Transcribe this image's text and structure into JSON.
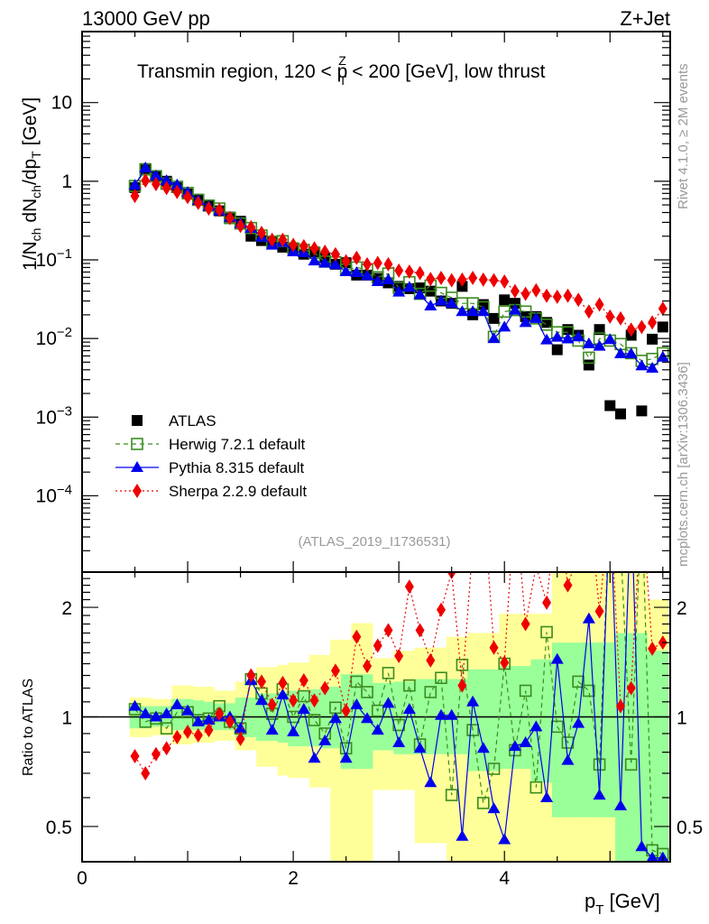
{
  "header": {
    "left": "13000 GeV pp",
    "right": "Z+Jet",
    "region_title": "Transmin region, 120 < p",
    "region_title_sup": "Z",
    "region_title_sub": "T",
    "region_title_end": " < 200 [GeV], low thrust"
  },
  "side": {
    "rivet": "Rivet 4.1.0, ≥ 2M events",
    "mcplots": "mcplots.cern.ch [arXiv:1306.3436]"
  },
  "analysis_id": "(ATLAS_2019_I1736531)",
  "chart_data": [
    {
      "type": "scatter",
      "panel": "main",
      "title": "Transmin region, 120 < pT^Z < 200 [GeV], low thrust",
      "ylabel": "1/N_ch dN_ch/dp_T [GeV]",
      "xlabel": "p_T [GeV]",
      "yscale": "log",
      "xlim": [
        0,
        5.57
      ],
      "ylim": [
        1.07e-05,
        80
      ],
      "y_ticks": [
        {
          "v": 10,
          "label": "10",
          "exp": ""
        },
        {
          "v": 1,
          "label": "1",
          "exp": ""
        },
        {
          "v": 0.1,
          "label": "10",
          "exp": "−1"
        },
        {
          "v": 0.01,
          "label": "10",
          "exp": "−2"
        },
        {
          "v": 0.001,
          "label": "10",
          "exp": "−3"
        },
        {
          "v": 0.0001,
          "label": "10",
          "exp": "−4"
        }
      ],
      "legend_position": "lower-left",
      "x": [
        0.5,
        0.6,
        0.7,
        0.8,
        0.9,
        1.0,
        1.1,
        1.2,
        1.3,
        1.4,
        1.5,
        1.6,
        1.7,
        1.8,
        1.9,
        2.0,
        2.1,
        2.2,
        2.3,
        2.4,
        2.5,
        2.6,
        2.7,
        2.8,
        2.9,
        3.0,
        3.1,
        3.2,
        3.3,
        3.4,
        3.5,
        3.6,
        3.7,
        3.8,
        3.9,
        4.0,
        4.1,
        4.2,
        4.3,
        4.4,
        4.5,
        4.6,
        4.7,
        4.8,
        4.9,
        5.0,
        5.1,
        5.2,
        5.3,
        5.4,
        5.5
      ],
      "series": [
        {
          "name": "ATLAS",
          "color": "#000000",
          "marker": "square",
          "line": "none",
          "values": [
            0.83,
            1.45,
            1.17,
            1.0,
            0.83,
            0.69,
            0.59,
            0.49,
            0.42,
            0.35,
            0.31,
            0.2,
            0.176,
            0.167,
            0.145,
            0.14,
            0.118,
            0.126,
            0.106,
            0.088,
            0.092,
            0.064,
            0.064,
            0.058,
            0.051,
            0.046,
            0.043,
            0.044,
            0.04,
            0.03,
            0.028,
            0.046,
            0.02,
            0.027,
            0.018,
            0.031,
            0.028,
            0.019,
            0.019,
            0.016,
            0.0072,
            0.013,
            0.011,
            0.0046,
            0.013,
            0.0014,
            0.0011,
            0.011,
            0.0012,
            0.0098,
            0.014
          ]
        },
        {
          "name": "Herwig 7.2.1 default",
          "color": "#3a8c1e",
          "marker": "open-square",
          "line": "dashed",
          "values": [
            0.87,
            1.41,
            1.16,
            0.93,
            0.85,
            0.71,
            0.58,
            0.49,
            0.45,
            0.34,
            0.29,
            0.254,
            0.204,
            0.17,
            0.173,
            0.14,
            0.134,
            0.123,
            0.095,
            0.093,
            0.075,
            0.08,
            0.075,
            0.06,
            0.067,
            0.044,
            0.052,
            0.037,
            0.047,
            0.038,
            0.033,
            0.028,
            0.028,
            0.025,
            0.0105,
            0.022,
            0.023,
            0.022,
            0.018,
            0.015,
            0.012,
            0.012,
            0.0094,
            0.0057,
            0.01,
            0.0094,
            0.0085,
            0.0065,
            0.0052,
            0.0055,
            0.0065
          ]
        },
        {
          "name": "Pythia 8.315 default",
          "color": "#0000ee",
          "marker": "triangle",
          "line": "solid",
          "values": [
            0.89,
            1.48,
            1.17,
            1.02,
            0.9,
            0.72,
            0.57,
            0.48,
            0.42,
            0.35,
            0.29,
            0.252,
            0.195,
            0.154,
            0.167,
            0.127,
            0.124,
            0.097,
            0.091,
            0.087,
            0.071,
            0.069,
            0.063,
            0.053,
            0.056,
            0.039,
            0.045,
            0.036,
            0.026,
            0.03,
            0.028,
            0.022,
            0.022,
            0.022,
            0.01,
            0.014,
            0.023,
            0.016,
            0.018,
            0.0096,
            0.0104,
            0.0099,
            0.0105,
            0.0086,
            0.008,
            0.0097,
            0.0064,
            0.0064,
            0.0045,
            0.0042,
            0.0058
          ]
        },
        {
          "name": "Sherpa 2.2.9 default",
          "color": "#ee0000",
          "marker": "diamond",
          "line": "dotted",
          "values": [
            0.65,
            1.02,
            0.92,
            0.82,
            0.73,
            0.63,
            0.53,
            0.45,
            0.43,
            0.34,
            0.27,
            0.26,
            0.22,
            0.18,
            0.18,
            0.155,
            0.149,
            0.14,
            0.127,
            0.118,
            0.096,
            0.106,
            0.088,
            0.091,
            0.088,
            0.073,
            0.071,
            0.068,
            0.057,
            0.059,
            0.055,
            0.056,
            0.059,
            0.056,
            0.055,
            0.053,
            0.04,
            0.037,
            0.041,
            0.035,
            0.034,
            0.035,
            0.031,
            0.022,
            0.027,
            0.019,
            0.018,
            0.013,
            0.014,
            0.016,
            0.024
          ]
        }
      ]
    },
    {
      "type": "scatter",
      "panel": "ratio",
      "ylabel": "Ratio to ATLAS",
      "xlabel": "p_T [GeV]",
      "yscale": "log",
      "xlim": [
        0,
        5.57
      ],
      "ylim": [
        0.4,
        2.5
      ],
      "x_ticks": [
        0,
        2,
        4
      ],
      "y_ticks": [
        0.5,
        1,
        2
      ],
      "reference_line": 1,
      "bands": {
        "inner_color": "#99ff99",
        "outer_color": "#ffff99",
        "inner": [
          [
            0.93,
            1.08
          ],
          [
            0.93,
            1.07
          ],
          [
            0.94,
            1.07
          ],
          [
            0.94,
            1.07
          ],
          [
            0.92,
            1.12
          ],
          [
            0.92,
            1.12
          ],
          [
            0.92,
            1.11
          ],
          [
            0.92,
            1.1
          ],
          [
            0.92,
            1.09
          ],
          [
            0.92,
            1.09
          ],
          [
            0.88,
            1.13
          ],
          [
            0.88,
            1.13
          ],
          [
            0.86,
            1.16
          ],
          [
            0.86,
            1.16
          ],
          [
            0.85,
            1.17
          ],
          [
            0.83,
            1.18
          ],
          [
            0.83,
            1.18
          ],
          [
            0.83,
            1.19
          ],
          [
            0.82,
            1.21
          ],
          [
            0.82,
            1.21
          ],
          [
            0.72,
            1.31
          ],
          [
            0.72,
            1.31
          ],
          [
            0.72,
            1.31
          ],
          [
            0.81,
            1.24
          ],
          [
            0.81,
            1.24
          ],
          [
            0.79,
            1.25
          ],
          [
            0.79,
            1.25
          ],
          [
            0.79,
            1.27
          ],
          [
            0.79,
            1.27
          ],
          [
            0.79,
            1.27
          ],
          [
            0.79,
            1.27
          ],
          [
            0.79,
            1.27
          ],
          [
            0.71,
            1.35
          ],
          [
            0.71,
            1.35
          ],
          [
            0.71,
            1.35
          ],
          [
            0.72,
            1.38
          ],
          [
            0.72,
            1.38
          ],
          [
            0.72,
            1.38
          ],
          [
            0.66,
            1.44
          ],
          [
            0.66,
            1.44
          ],
          [
            0.53,
            1.6
          ],
          [
            0.53,
            1.6
          ],
          [
            0.53,
            1.6
          ],
          [
            0.53,
            1.6
          ],
          [
            0.53,
            1.6
          ],
          [
            0.53,
            1.6
          ],
          [
            0.4,
            1.7
          ],
          [
            0.4,
            1.7
          ],
          [
            0.4,
            1.7
          ],
          [
            0.4,
            1.52
          ],
          [
            0.4,
            1.52
          ]
        ],
        "outer": [
          [
            0.88,
            1.13
          ],
          [
            0.88,
            1.13
          ],
          [
            0.89,
            1.12
          ],
          [
            0.89,
            1.12
          ],
          [
            0.84,
            1.22
          ],
          [
            0.84,
            1.22
          ],
          [
            0.85,
            1.21
          ],
          [
            0.85,
            1.21
          ],
          [
            0.86,
            1.18
          ],
          [
            0.86,
            1.18
          ],
          [
            0.81,
            1.25
          ],
          [
            0.81,
            1.25
          ],
          [
            0.73,
            1.37
          ],
          [
            0.73,
            1.37
          ],
          [
            0.69,
            1.39
          ],
          [
            0.68,
            1.41
          ],
          [
            0.68,
            1.41
          ],
          [
            0.64,
            1.48
          ],
          [
            0.64,
            1.48
          ],
          [
            0.4,
            1.63
          ],
          [
            0.4,
            1.63
          ],
          [
            0.4,
            1.81
          ],
          [
            0.4,
            1.81
          ],
          [
            0.63,
            1.45
          ],
          [
            0.63,
            1.45
          ],
          [
            0.63,
            1.52
          ],
          [
            0.63,
            1.52
          ],
          [
            0.45,
            1.55
          ],
          [
            0.45,
            1.55
          ],
          [
            0.45,
            1.55
          ],
          [
            0.4,
            1.66
          ],
          [
            0.4,
            1.66
          ],
          [
            0.4,
            1.7
          ],
          [
            0.4,
            1.7
          ],
          [
            0.4,
            1.7
          ],
          [
            0.4,
            1.92
          ],
          [
            0.4,
            1.92
          ],
          [
            0.4,
            1.92
          ],
          [
            0.4,
            1.92
          ],
          [
            0.4,
            1.92
          ],
          [
            0.4,
            2.5
          ],
          [
            0.4,
            2.5
          ],
          [
            0.4,
            2.5
          ],
          [
            0.4,
            2.5
          ],
          [
            0.4,
            2.5
          ],
          [
            0.4,
            2.5
          ],
          [
            0.4,
            2.5
          ],
          [
            0.4,
            2.5
          ],
          [
            0.4,
            2.5
          ],
          [
            0.4,
            2.1
          ],
          [
            0.4,
            2.1
          ]
        ]
      },
      "series": [
        {
          "name": "Herwig 7.2.1 default",
          "color": "#3a8c1e",
          "marker": "open-square",
          "line": "dashed",
          "values": [
            1.05,
            0.97,
            0.99,
            0.93,
            1.03,
            1.03,
            0.98,
            0.99,
            1.07,
            0.97,
            0.93,
            1.27,
            1.16,
            1.02,
            1.19,
            1.0,
            1.14,
            0.98,
            0.9,
            1.06,
            0.82,
            1.25,
            1.17,
            1.04,
            1.32,
            0.95,
            1.22,
            0.84,
            1.17,
            1.28,
            0.61,
            1.39,
            0.92,
            0.58,
            0.72,
            1.4,
            0.81,
            1.18,
            0.64,
            1.71,
            0.94,
            0.85,
            1.25,
            1.18,
            0.74,
            6.0,
            3.0,
            0.74,
            4.0,
            0.43,
            0.42
          ]
        },
        {
          "name": "Pythia 8.315 default",
          "color": "#0000ee",
          "marker": "triangle",
          "line": "solid",
          "values": [
            1.07,
            1.02,
            1.0,
            1.02,
            1.08,
            1.04,
            0.97,
            0.98,
            1.0,
            1.0,
            0.93,
            1.26,
            1.11,
            0.92,
            1.15,
            0.91,
            1.05,
            0.77,
            0.86,
            0.99,
            0.77,
            1.08,
            0.99,
            0.92,
            1.09,
            0.85,
            1.05,
            0.82,
            0.66,
            1.01,
            1.01,
            0.47,
            1.1,
            0.82,
            0.56,
            0.46,
            0.83,
            0.85,
            0.94,
            0.6,
            1.44,
            0.76,
            0.96,
            1.86,
            0.61,
            7.0,
            0.57,
            5.8,
            0.44,
            0.41,
            0.41
          ]
        },
        {
          "name": "Sherpa 2.2.9 default",
          "color": "#ee0000",
          "marker": "diamond",
          "line": "dotted",
          "values": [
            0.78,
            0.7,
            0.79,
            0.82,
            0.88,
            0.91,
            0.89,
            0.92,
            1.02,
            0.97,
            0.87,
            1.3,
            1.25,
            1.08,
            1.24,
            1.11,
            1.26,
            1.11,
            1.2,
            1.34,
            1.04,
            1.66,
            1.38,
            1.57,
            1.73,
            1.47,
            2.28,
            1.73,
            1.43,
            1.97,
            2.5,
            1.22,
            2.95,
            4.0,
            1.55,
            1.41,
            4.0,
            1.8,
            2.6,
            2.06,
            4.7,
            2.3,
            2.82,
            4.8,
            1.95,
            13,
            1.07,
            1.2,
            11,
            1.54,
            1.6
          ]
        }
      ]
    }
  ],
  "legend": [
    {
      "label": "ATLAS",
      "marker": "square",
      "color": "#000000"
    },
    {
      "label": "Herwig 7.2.1 default",
      "marker": "open-square",
      "color": "#3a8c1e"
    },
    {
      "label": "Pythia 8.315 default",
      "marker": "triangle",
      "color": "#0000ee"
    },
    {
      "label": "Sherpa 2.2.9 default",
      "marker": "diamond",
      "color": "#ee0000"
    }
  ],
  "axis": {
    "main_ylabel": "1/N",
    "main_ylabel_parts": [
      "1/N",
      "ch",
      " dN",
      "ch",
      "/dp",
      "T",
      " [GeV]"
    ],
    "ratio_ylabel": "Ratio to ATLAS",
    "xlabel_p": "p",
    "xlabel_sub": "T",
    "xlabel_unit": " [GeV]",
    "x_tick_labels": [
      "0",
      "2",
      "4"
    ],
    "ratio_tick_labels": [
      "2",
      "1",
      "0.5"
    ]
  }
}
